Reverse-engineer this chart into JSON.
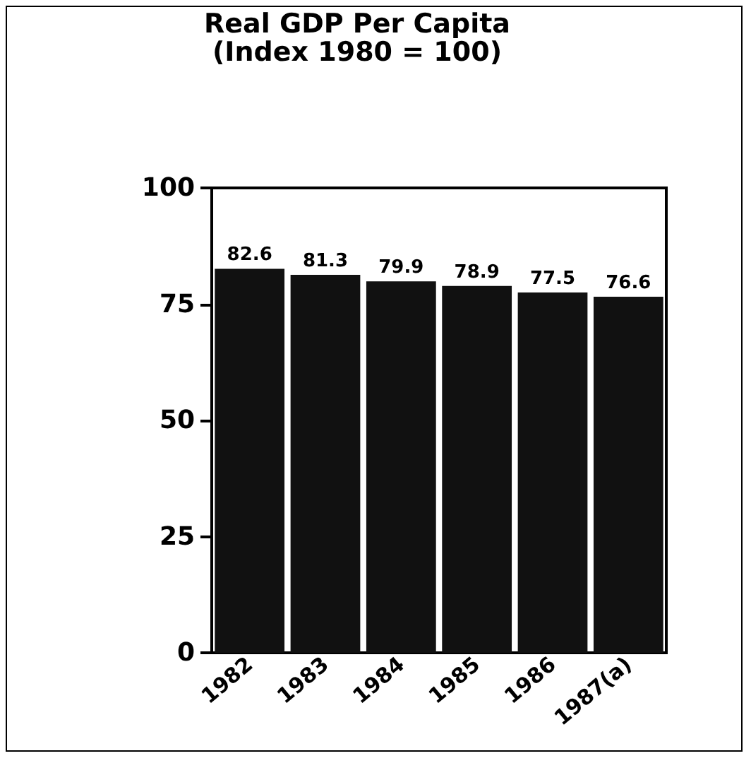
{
  "chart_data": {
    "type": "bar",
    "title": "Real GDP Per Capita",
    "subtitle": "(Index 1980 = 100)",
    "categories": [
      "1982",
      "1983",
      "1984",
      "1985",
      "1986",
      "1987(a)"
    ],
    "values": [
      82.6,
      81.3,
      79.9,
      78.9,
      77.5,
      76.6
    ],
    "color": "#111111",
    "ylim": [
      0,
      100
    ],
    "yticks": [
      0,
      25,
      50,
      75,
      100
    ],
    "grid": false,
    "data_labels": true
  }
}
